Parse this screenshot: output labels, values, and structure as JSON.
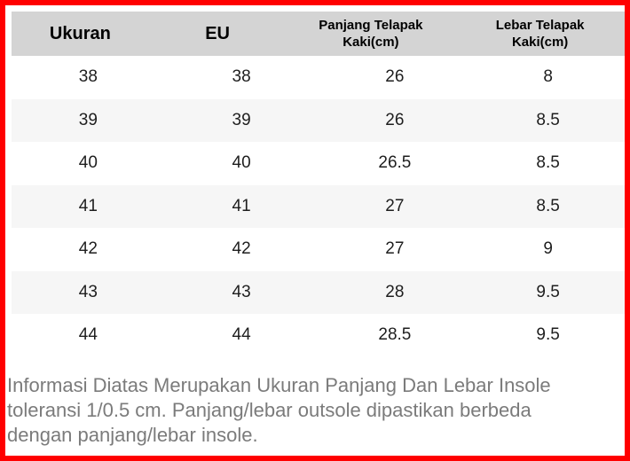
{
  "colors": {
    "border_red": "#ff0000",
    "header_bg": "#d4d4d4",
    "row_bg": "#ffffff",
    "row_alt_bg": "#f6f6f6",
    "cell_text": "#1e1e1e",
    "note_text": "#7b7b7b"
  },
  "table": {
    "columns": [
      "Ukuran",
      "EU",
      "Panjang Telapak Kaki(cm)",
      "Lebar Telapak Kaki(cm)"
    ],
    "rows": [
      [
        "38",
        "38",
        "26",
        "8"
      ],
      [
        "39",
        "39",
        "26",
        "8.5"
      ],
      [
        "40",
        "40",
        "26.5",
        "8.5"
      ],
      [
        "41",
        "41",
        "27",
        "8.5"
      ],
      [
        "42",
        "42",
        "27",
        "9"
      ],
      [
        "43",
        "43",
        "28",
        "9.5"
      ],
      [
        "44",
        "44",
        "28.5",
        "9.5"
      ]
    ]
  },
  "note": {
    "lines": [
      "Informasi Diatas Merupakan Ukuran Panjang Dan Lebar Insole",
      "toleransi 1/0.5 cm. Panjang/lebar outsole dipastikan berbeda",
      "dengan panjang/lebar insole."
    ]
  }
}
